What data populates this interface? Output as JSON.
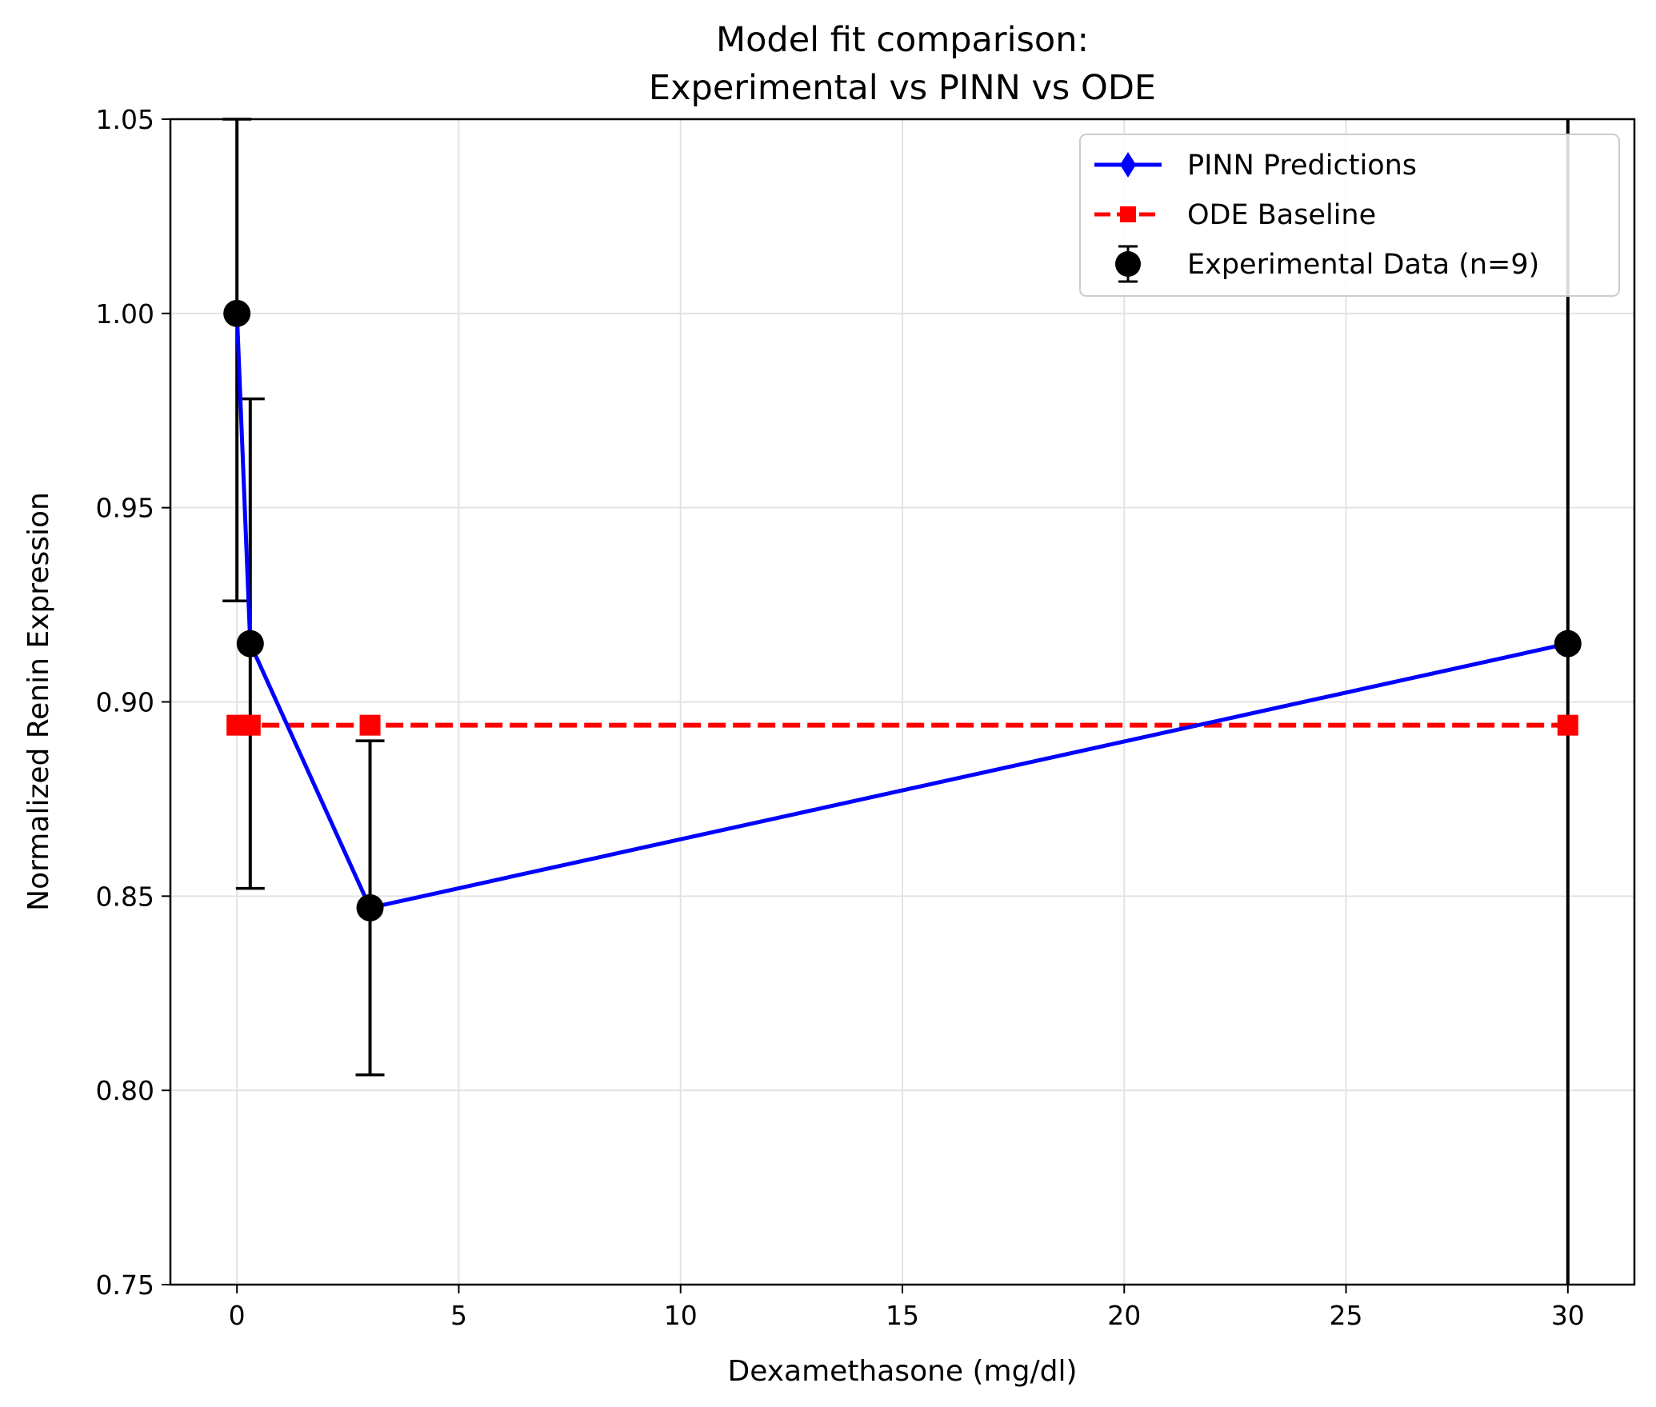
{
  "chart_data": {
    "type": "line",
    "title": "Model fit comparison:",
    "subtitle": "Experimental vs PINN vs ODE",
    "xlabel": "Dexamethasone (mg/dl)",
    "ylabel": "Normalized Renin Expression",
    "xlim": [
      -1.5,
      31.5
    ],
    "ylim": [
      0.75,
      1.05
    ],
    "x_ticks": [
      0,
      5,
      10,
      15,
      20,
      25,
      30
    ],
    "y_ticks": [
      0.75,
      0.8,
      0.85,
      0.9,
      0.95,
      1.0,
      1.05
    ],
    "x_tick_labels": [
      "0",
      "5",
      "10",
      "15",
      "20",
      "25",
      "30"
    ],
    "y_tick_labels": [
      "0.75",
      "0.80",
      "0.85",
      "0.90",
      "0.95",
      "1.00",
      "1.05"
    ],
    "grid": true,
    "legend_position": "top-right",
    "series": [
      {
        "name": "PINN Predictions",
        "kind": "line",
        "color": "#0000ff",
        "marker": "diamond",
        "x": [
          0,
          0.3,
          3,
          30
        ],
        "y": [
          1.0,
          0.915,
          0.847,
          0.915
        ]
      },
      {
        "name": "ODE Baseline",
        "kind": "dashed-line",
        "color": "#ff0000",
        "marker": "square",
        "x": [
          0,
          0.3,
          3,
          30
        ],
        "y": [
          0.894,
          0.894,
          0.894,
          0.894
        ]
      },
      {
        "name": "Experimental Data (n=9)",
        "kind": "errorbar",
        "color": "#000000",
        "marker": "circle",
        "x": [
          0,
          0.3,
          3,
          30
        ],
        "y": [
          1.0,
          0.915,
          0.847,
          0.915
        ],
        "err_low": [
          0.926,
          0.852,
          0.804,
          0.75
        ],
        "err_high": [
          1.05,
          0.978,
          0.89,
          1.05
        ],
        "caps": [
          true,
          true,
          true,
          false
        ]
      }
    ]
  }
}
